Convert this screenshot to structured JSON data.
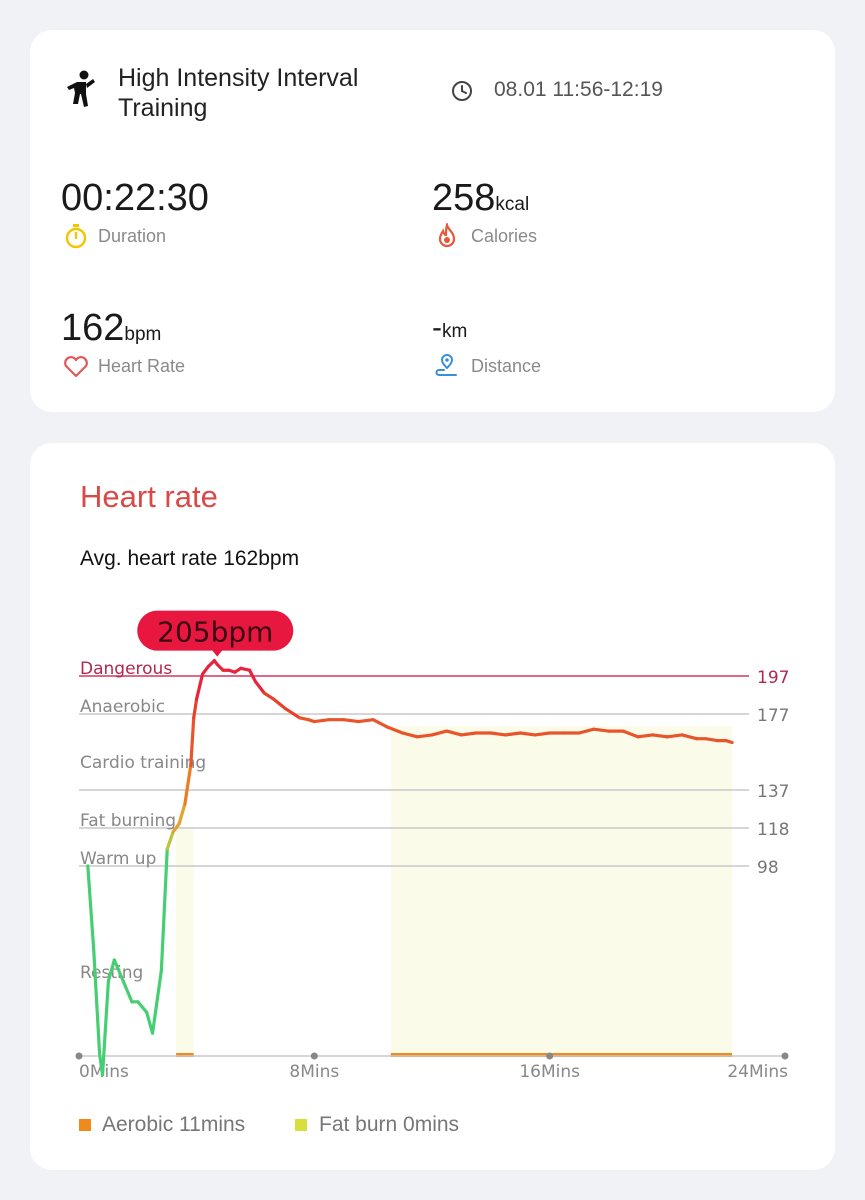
{
  "workout": {
    "name": "High Intensity Interval Training",
    "time_range": "08.01 11:56-12:19"
  },
  "stats": {
    "duration": {
      "value": "00:22:30",
      "label": "Duration"
    },
    "calories": {
      "value": "258",
      "unit": "kcal",
      "label": "Calories"
    },
    "heart_rate": {
      "value": "162",
      "unit": "bpm",
      "label": "Heart Rate"
    },
    "distance": {
      "value": "-",
      "unit": "km",
      "label": "Distance"
    }
  },
  "heart_rate_section": {
    "title": "Heart rate",
    "avg_text": "Avg. heart rate 162bpm",
    "peak_label": "205bpm",
    "legend": [
      {
        "label": "Aerobic 11mins",
        "color": "#f08a1d"
      },
      {
        "label": "Fat burn 0mins",
        "color": "#d7df3a"
      }
    ]
  },
  "colors": {
    "accent_red": "#d94a46",
    "danger_line": "#e06a85",
    "peak_badge": "#e8173f",
    "zone_fill": "#fbfbe9"
  },
  "chart_data": {
    "type": "line",
    "xlabel": "",
    "ylabel": "",
    "x_ticks": [
      "0Mins",
      "8Mins",
      "16Mins",
      "24Mins"
    ],
    "xlim": [
      0,
      24
    ],
    "zones": [
      {
        "name": "Dangerous",
        "threshold": 197
      },
      {
        "name": "Anaerobic",
        "threshold": 177
      },
      {
        "name": "Cardio training",
        "threshold": 137
      },
      {
        "name": "Fat burning",
        "threshold": 118
      },
      {
        "name": "Warm up",
        "threshold": 98
      },
      {
        "name": "Resting",
        "threshold": null
      }
    ],
    "peak": {
      "x": 4.7,
      "y": 205
    },
    "highlight_ranges": [
      [
        3.3,
        3.9
      ],
      [
        10.6,
        22.2
      ]
    ],
    "series": [
      {
        "x": [
          0.3,
          0.5,
          0.7,
          0.8,
          1.0,
          1.2,
          1.5,
          1.8,
          2.0,
          2.3,
          2.5,
          2.8,
          3.0,
          3.2,
          3.4,
          3.6,
          3.8,
          3.9,
          4.0,
          4.2,
          4.4,
          4.6,
          4.7,
          4.9,
          5.1,
          5.3,
          5.5,
          5.8,
          6.0,
          6.3,
          6.6,
          7.0,
          7.5,
          7.8,
          8.0,
          8.5,
          9.0,
          9.5,
          10.0,
          10.5,
          11.0,
          11.5,
          12.0,
          12.5,
          13.0,
          13.5,
          14.0,
          14.5,
          15.0,
          15.5,
          16.0,
          16.5,
          17.0,
          17.5,
          18.0,
          18.5,
          19.0,
          19.5,
          20.0,
          20.5,
          21.0,
          21.3,
          21.7,
          22.0,
          22.2
        ],
        "y": [
          98,
          90,
          80,
          78,
          87,
          89,
          87,
          85,
          85,
          84,
          82,
          88,
          107,
          116,
          120,
          130,
          150,
          175,
          185,
          198,
          202,
          205,
          203,
          200,
          200,
          199,
          201,
          200,
          194,
          188,
          185,
          180,
          175,
          174,
          173,
          174,
          174,
          173,
          174,
          170,
          167,
          165,
          166,
          168,
          166,
          167,
          167,
          166,
          167,
          166,
          167,
          167,
          167,
          169,
          168,
          168,
          165,
          166,
          165,
          166,
          164,
          164,
          163,
          163,
          162
        ]
      }
    ]
  }
}
